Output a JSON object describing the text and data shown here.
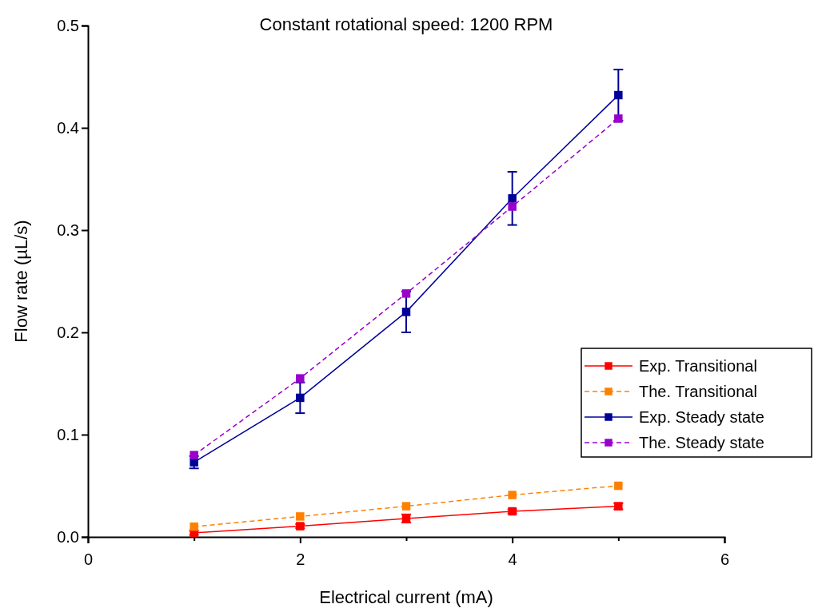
{
  "chart_data": {
    "type": "line",
    "title": "Constant rotational speed: 1200 RPM",
    "xlabel": "Electrical current (mA)",
    "ylabel": "Flow rate (µL/s)",
    "x": [
      1,
      2,
      3,
      4,
      5
    ],
    "series": [
      {
        "name": "Exp. Transitional",
        "color": "#ff0000",
        "line_style": "solid",
        "values": [
          0.004,
          0.0105,
          0.018,
          0.025,
          0.03
        ],
        "errors": [
          0.002,
          0.002,
          0.004,
          0.002,
          0.003
        ]
      },
      {
        "name": "The. Transitional",
        "color": "#ff8000",
        "line_style": "dashed",
        "values": [
          0.01,
          0.02,
          0.03,
          0.041,
          0.05
        ]
      },
      {
        "name": "Exp. Steady state",
        "color": "#000099",
        "line_style": "solid",
        "values": [
          0.073,
          0.136,
          0.22,
          0.331,
          0.432
        ],
        "errors": [
          0.006,
          0.015,
          0.02,
          0.026,
          0.025
        ]
      },
      {
        "name": "The. Steady state",
        "color": "#9900cc",
        "line_style": "dashed",
        "values": [
          0.08,
          0.155,
          0.238,
          0.323,
          0.409
        ]
      }
    ],
    "marker": "square",
    "legend": "bottom right",
    "grid": false,
    "xlim": [
      0,
      6
    ],
    "xticks": [
      0,
      {
        "value": 1,
        "label": null
      },
      2,
      {
        "value": 3,
        "label": null
      },
      4,
      {
        "value": 5,
        "label": null
      },
      6
    ],
    "ylim": [
      0,
      0.5
    ],
    "yticks": [
      {
        "value": 0,
        "label": "0.0"
      },
      0.1,
      0.2,
      0.3,
      0.4,
      0.5
    ]
  }
}
